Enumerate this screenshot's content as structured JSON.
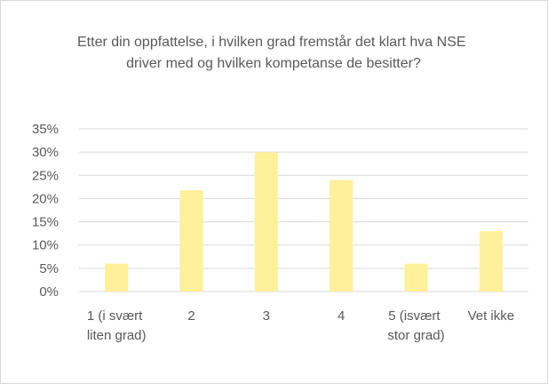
{
  "chart_data": {
    "type": "bar",
    "title": "Etter din oppfattelse, i hvilken grad fremstår det klart hva NSE driver med og hvilken kompetanse de besitter?",
    "categories": [
      "1 (i svært liten grad)",
      "2",
      "3",
      "4",
      "5 (isvært stor grad)",
      "Vet ikke"
    ],
    "values": [
      6,
      21.8,
      30,
      24,
      6,
      13
    ],
    "color": "#fff09c",
    "ylim": [
      0,
      35
    ],
    "yticks": [
      {
        "value": 0,
        "label": "0%"
      },
      {
        "value": 5,
        "label": "5%"
      },
      {
        "value": 10,
        "label": "10%"
      },
      {
        "value": 15,
        "label": "15%"
      },
      {
        "value": 20,
        "label": "20%"
      },
      {
        "value": 25,
        "label": "25%"
      },
      {
        "value": 30,
        "label": "30%"
      },
      {
        "value": 35,
        "label": "35%"
      }
    ],
    "grid": true
  }
}
